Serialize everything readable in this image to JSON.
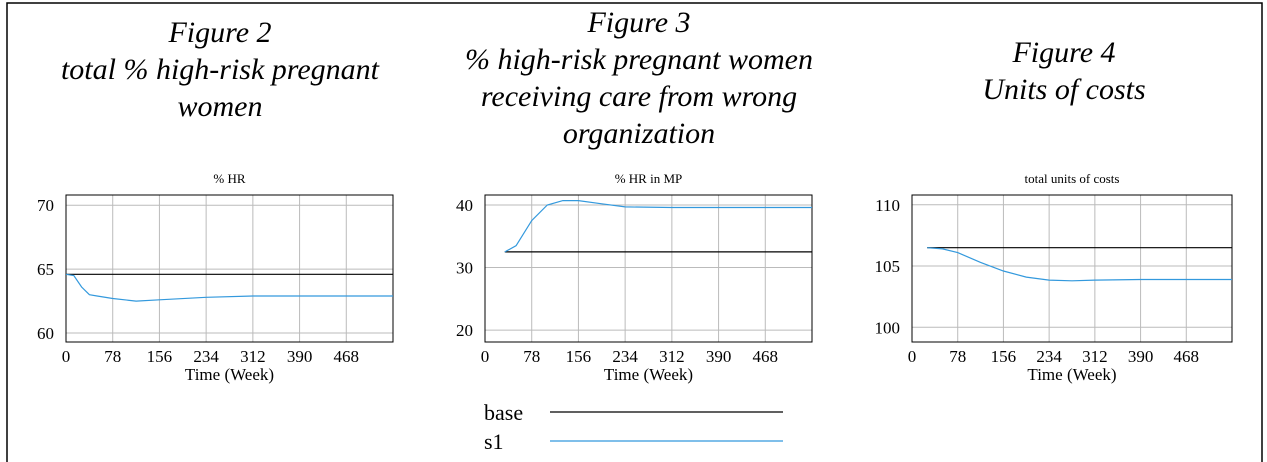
{
  "chart_data": [
    {
      "type": "line",
      "heading": [
        "Figure 2",
        "total % high-risk pregnant",
        "women"
      ],
      "title": "% HR",
      "xlabel": "Time (Week)",
      "xlim": [
        0,
        546
      ],
      "xticks": [
        0,
        78,
        156,
        234,
        312,
        390,
        468
      ],
      "ylim": [
        59.3,
        70.8
      ],
      "yticks": [
        60,
        65,
        70
      ],
      "grid": true,
      "series": [
        {
          "name": "base",
          "color": "#000000",
          "x": [
            0,
            546
          ],
          "values": [
            64.6,
            64.6
          ]
        },
        {
          "name": "s1",
          "color": "#3399dd",
          "x": [
            0,
            13,
            26,
            39,
            52,
            78,
            117,
            156,
            234,
            312,
            390,
            468,
            546
          ],
          "values": [
            64.6,
            64.5,
            63.6,
            63.0,
            62.9,
            62.7,
            62.5,
            62.6,
            62.8,
            62.9,
            62.9,
            62.9,
            62.9
          ]
        }
      ]
    },
    {
      "type": "line",
      "heading": [
        "Figure 3",
        "% high-risk pregnant women",
        "receiving care from wrong",
        "organization"
      ],
      "title": "% HR in MP",
      "xlabel": "Time (Week)",
      "xlim": [
        0,
        546
      ],
      "xticks": [
        0,
        78,
        156,
        234,
        312,
        390,
        468
      ],
      "ylim": [
        18.1,
        41.6
      ],
      "yticks": [
        20,
        30,
        40
      ],
      "grid": true,
      "series": [
        {
          "name": "base",
          "color": "#000000",
          "x": [
            33,
            546
          ],
          "values": [
            32.5,
            32.5
          ]
        },
        {
          "name": "s1",
          "color": "#3399dd",
          "x": [
            33,
            52,
            78,
            104,
            130,
            156,
            195,
            234,
            312,
            390,
            468,
            546
          ],
          "values": [
            32.5,
            33.5,
            37.5,
            40.0,
            40.7,
            40.7,
            40.2,
            39.7,
            39.6,
            39.6,
            39.6,
            39.6
          ]
        }
      ]
    },
    {
      "type": "line",
      "heading": [
        "Figure 4",
        "Units of costs"
      ],
      "title": "total units of costs",
      "xlabel": "Time (Week)",
      "xlim": [
        0,
        546
      ],
      "xticks": [
        0,
        78,
        156,
        234,
        312,
        390,
        468
      ],
      "ylim": [
        98.8,
        110.8
      ],
      "yticks": [
        100,
        105,
        110
      ],
      "grid": true,
      "series": [
        {
          "name": "base",
          "color": "#000000",
          "x": [
            26,
            546
          ],
          "values": [
            106.5,
            106.5
          ]
        },
        {
          "name": "s1",
          "color": "#3399dd",
          "x": [
            26,
            52,
            78,
            117,
            156,
            195,
            234,
            273,
            312,
            390,
            468,
            546
          ],
          "values": [
            106.5,
            106.4,
            106.1,
            105.3,
            104.6,
            104.1,
            103.85,
            103.8,
            103.85,
            103.9,
            103.9,
            103.9
          ]
        }
      ]
    }
  ]
}
